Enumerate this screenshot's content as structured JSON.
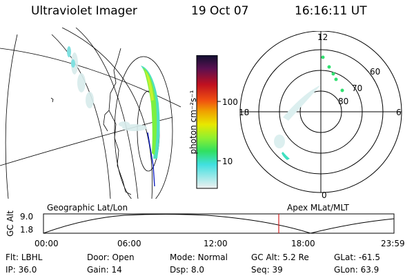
{
  "header": {
    "instrument": "Ultraviolet Imager",
    "date": "19 Oct 07",
    "time": "16:16:11 UT"
  },
  "colorbar": {
    "unit_label": "photon cm⁻²s⁻¹",
    "ticks": [
      "100",
      "10"
    ]
  },
  "polar": {
    "mlt_labels": {
      "top": "12",
      "left": "18",
      "right": "6",
      "bottom": "0"
    },
    "lat_labels": [
      "60",
      "70",
      "80"
    ]
  },
  "timeline": {
    "left_label": "Geographic Lat/Lon",
    "right_label": "Apex MLat/MLT",
    "axis_title": "GC Alt",
    "y_ticks": [
      "9.0",
      "1.8"
    ],
    "x_ticks": [
      "00:00",
      "06:00",
      "12:00",
      "18:00",
      "23:59"
    ]
  },
  "status": {
    "row1": [
      {
        "key": "Flt:",
        "value": "LBHL"
      },
      {
        "key": "Door:",
        "value": "Open"
      },
      {
        "key": "Mode:",
        "value": "Normal"
      },
      {
        "key": "GC Alt:",
        "value": "5.2 Re"
      },
      {
        "key": "GLat:",
        "value": "-61.5"
      }
    ],
    "row2": [
      {
        "key": "IP:",
        "value": "36.0"
      },
      {
        "key": "Gain:",
        "value": "14"
      },
      {
        "key": "Dsp:",
        "value": "8.0"
      },
      {
        "key": "Seq:",
        "value": "39"
      },
      {
        "key": "GLon:",
        "value": "63.9"
      }
    ]
  }
}
